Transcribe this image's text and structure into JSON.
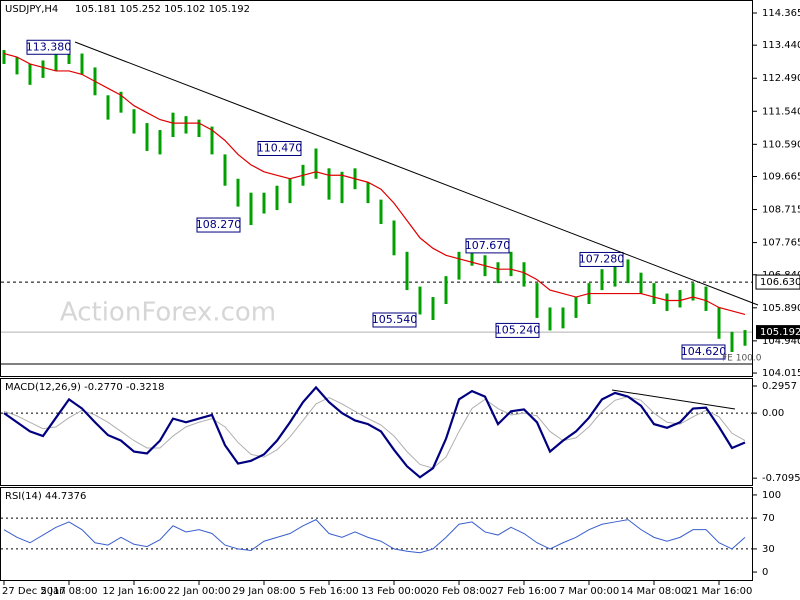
{
  "chart_data": [
    {
      "type": "range-bar",
      "title": "USDJPY,H4",
      "ohlc_text": "105.181 105.252 105.102 105.192",
      "color": "#00a000",
      "high": [
        113.3,
        113.1,
        112.9,
        113.0,
        113.2,
        113.38,
        113.2,
        112.8,
        112.0,
        112.1,
        111.6,
        111.2,
        111.0,
        111.5,
        111.4,
        111.3,
        111.1,
        110.3,
        109.6,
        109.2,
        109.2,
        109.4,
        109.6,
        110.0,
        110.47,
        109.9,
        109.8,
        109.9,
        109.5,
        109.0,
        108.4,
        107.5,
        106.5,
        106.2,
        106.8,
        107.5,
        107.67,
        107.4,
        107.2,
        107.5,
        107.2,
        106.6,
        105.9,
        105.9,
        106.2,
        106.6,
        107.0,
        107.1,
        107.28,
        106.9,
        106.6,
        106.3,
        106.4,
        106.6,
        106.5,
        105.9,
        105.2,
        105.25
      ],
      "low": [
        112.9,
        112.6,
        112.3,
        112.5,
        112.7,
        112.9,
        112.6,
        112.0,
        111.3,
        111.5,
        110.9,
        110.4,
        110.3,
        110.8,
        110.9,
        110.8,
        110.3,
        109.4,
        108.8,
        108.27,
        108.6,
        108.7,
        108.9,
        109.4,
        109.6,
        109.0,
        108.9,
        109.3,
        108.9,
        108.3,
        107.4,
        106.4,
        105.7,
        105.54,
        106.0,
        106.7,
        107.1,
        106.8,
        106.6,
        106.8,
        106.5,
        105.6,
        105.24,
        105.3,
        105.6,
        106.0,
        106.4,
        106.5,
        106.6,
        106.3,
        106.0,
        105.8,
        105.9,
        106.1,
        105.8,
        105.0,
        104.62,
        104.8
      ],
      "ma": {
        "color": "#e00000",
        "values": [
          113.2,
          113.1,
          112.9,
          112.8,
          112.7,
          112.7,
          112.6,
          112.4,
          112.2,
          112.0,
          111.7,
          111.5,
          111.3,
          111.2,
          111.2,
          111.2,
          111.0,
          110.7,
          110.3,
          110.0,
          109.8,
          109.7,
          109.6,
          109.7,
          109.8,
          109.7,
          109.7,
          109.6,
          109.5,
          109.3,
          108.9,
          108.4,
          107.9,
          107.6,
          107.4,
          107.3,
          107.2,
          107.1,
          107.0,
          107.0,
          106.9,
          106.7,
          106.4,
          106.3,
          106.2,
          106.3,
          106.3,
          106.3,
          106.3,
          106.3,
          106.2,
          106.1,
          106.1,
          106.2,
          106.1,
          105.9,
          105.8,
          105.7
        ]
      },
      "ylim": [
        103.93,
        114.71
      ],
      "yticks": [
        114.365,
        {
          "value": 113.44,
          "label": "113.440"
        },
        {
          "value": 112.49,
          "label": "112.490"
        },
        {
          "value": 111.54,
          "label": "111.540"
        },
        {
          "value": 110.59,
          "label": "110.590"
        },
        109.665,
        108.715,
        107.765,
        {
          "value": 106.84,
          "label": "106.840"
        },
        {
          "value": 105.89,
          "label": "105.890"
        },
        {
          "value": 104.94,
          "label": "104.940"
        },
        104.015
      ],
      "annotations": [
        {
          "value": 113.38,
          "label": "113.380"
        },
        {
          "value": 110.47,
          "label": "110.470"
        },
        {
          "value": 108.27,
          "label": "108.270"
        },
        {
          "value": 107.67,
          "label": "107.670"
        },
        {
          "value": 105.54,
          "label": "105.540"
        },
        {
          "value": 105.24,
          "label": "105.240"
        },
        {
          "value": 107.28,
          "label": "107.280"
        },
        {
          "value": 104.62,
          "label": "104.620"
        }
      ],
      "level": {
        "value": 106.63,
        "label": "106.630"
      },
      "last": {
        "value": 105.192,
        "label": "105.192"
      },
      "note": "FE 100.0",
      "watermark": "ActionForex.com"
    },
    {
      "type": "line",
      "title": "MACD(12,26,9) -0.2770 -0.3218",
      "color": "#000080",
      "signal_color": "#b0b0b0",
      "values": [
        0.0,
        -0.1,
        -0.2,
        -0.25,
        -0.05,
        0.15,
        0.05,
        -0.1,
        -0.24,
        -0.3,
        -0.42,
        -0.44,
        -0.3,
        -0.06,
        -0.1,
        -0.06,
        -0.02,
        -0.35,
        -0.55,
        -0.52,
        -0.45,
        -0.3,
        -0.1,
        0.12,
        0.28,
        0.12,
        0.0,
        -0.08,
        -0.12,
        -0.2,
        -0.4,
        -0.58,
        -0.7,
        -0.6,
        -0.28,
        0.15,
        0.24,
        0.18,
        -0.12,
        0.02,
        0.04,
        -0.1,
        -0.42,
        -0.3,
        -0.2,
        -0.05,
        0.15,
        0.22,
        0.18,
        0.08,
        -0.12,
        -0.16,
        -0.1,
        0.05,
        0.06,
        -0.15,
        -0.38,
        -0.32
      ],
      "signal": [
        0.02,
        -0.03,
        -0.1,
        -0.17,
        -0.15,
        -0.05,
        0.03,
        -0.02,
        -0.1,
        -0.2,
        -0.3,
        -0.38,
        -0.38,
        -0.25,
        -0.15,
        -0.1,
        -0.06,
        -0.15,
        -0.32,
        -0.45,
        -0.48,
        -0.4,
        -0.26,
        -0.08,
        0.1,
        0.17,
        0.1,
        0.02,
        -0.06,
        -0.13,
        -0.25,
        -0.42,
        -0.56,
        -0.6,
        -0.48,
        -0.2,
        0.05,
        0.15,
        0.05,
        -0.02,
        0.0,
        -0.03,
        -0.2,
        -0.3,
        -0.27,
        -0.15,
        0.02,
        0.14,
        0.18,
        0.14,
        0.0,
        -0.1,
        -0.12,
        -0.04,
        0.03,
        -0.04,
        -0.22,
        -0.3
      ],
      "ylim": [
        -0.784,
        0.372
      ],
      "yticks": [
        0.2957,
        {
          "value": 0,
          "label": "0.00"
        },
        -0.7095
      ]
    },
    {
      "type": "line",
      "title": "RSI(14) 44.7376",
      "color": "#3a5fcd",
      "values": [
        55,
        45,
        38,
        48,
        58,
        65,
        55,
        38,
        35,
        45,
        36,
        33,
        42,
        60,
        52,
        55,
        50,
        35,
        30,
        28,
        40,
        45,
        50,
        60,
        68,
        50,
        45,
        52,
        45,
        40,
        30,
        27,
        25,
        30,
        45,
        62,
        65,
        52,
        48,
        58,
        50,
        38,
        30,
        38,
        45,
        55,
        62,
        65,
        68,
        55,
        45,
        40,
        45,
        55,
        55,
        38,
        30,
        45
      ],
      "ylim": [
        -10.3,
        109
      ],
      "yticks": [
        100,
        70,
        30,
        0
      ],
      "categories": [
        "27 Dec 2017",
        null,
        null,
        null,
        null,
        "5 Jan 08:00",
        null,
        null,
        null,
        null,
        "12 Jan 16:00",
        null,
        null,
        null,
        null,
        "22 Jan 00:00",
        null,
        null,
        null,
        null,
        "29 Jan 08:00",
        null,
        null,
        null,
        null,
        "5 Feb 16:00",
        null,
        null,
        null,
        null,
        "13 Feb 00:00",
        null,
        null,
        null,
        null,
        "20 Feb 08:00",
        null,
        null,
        null,
        null,
        "27 Feb 16:00",
        null,
        null,
        null,
        null,
        "7 Mar 00:00",
        null,
        null,
        null,
        null,
        "14 Mar 08:00",
        null,
        null,
        null,
        null,
        "21 Mar 16:00",
        null,
        null
      ]
    }
  ]
}
